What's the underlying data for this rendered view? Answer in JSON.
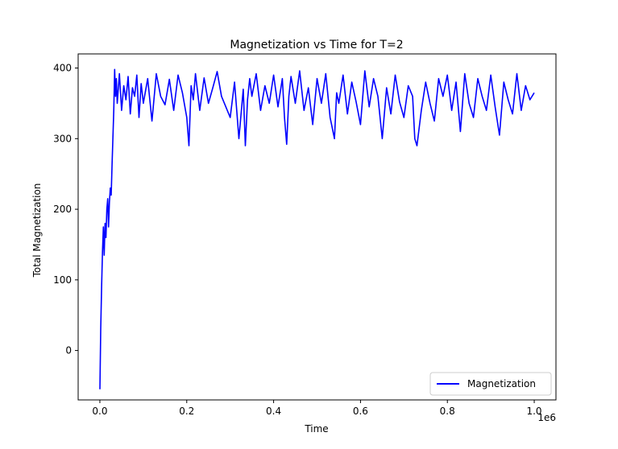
{
  "chart_data": {
    "type": "line",
    "title": "Magnetization vs Time for T=2",
    "xlabel": "Time",
    "ylabel": "Total Magnetization",
    "x_scale_label": "1e6",
    "xlim": [
      -50000,
      1050000
    ],
    "ylim": [
      -70,
      420
    ],
    "x_ticks": [
      0,
      200000,
      400000,
      600000,
      800000,
      1000000
    ],
    "x_tick_labels": [
      "0.0",
      "0.2",
      "0.4",
      "0.6",
      "0.8",
      "1.0"
    ],
    "y_ticks": [
      0,
      100,
      200,
      300,
      400
    ],
    "y_tick_labels": [
      "0",
      "100",
      "200",
      "300",
      "400"
    ],
    "grid": false,
    "legend": "lower-right",
    "series": [
      {
        "name": "Magnetization",
        "color": "#0000ff",
        "x": [
          0,
          2000,
          4000,
          6000,
          8000,
          10000,
          12000,
          14000,
          16000,
          18000,
          20000,
          22000,
          24000,
          26000,
          28000,
          30000,
          32000,
          34000,
          36000,
          38000,
          40000,
          45000,
          50000,
          55000,
          60000,
          65000,
          70000,
          75000,
          80000,
          85000,
          90000,
          95000,
          100000,
          110000,
          120000,
          130000,
          140000,
          150000,
          160000,
          170000,
          180000,
          190000,
          200000,
          205000,
          210000,
          215000,
          220000,
          230000,
          240000,
          250000,
          260000,
          270000,
          280000,
          290000,
          300000,
          310000,
          320000,
          330000,
          335000,
          340000,
          345000,
          350000,
          360000,
          370000,
          380000,
          390000,
          400000,
          410000,
          420000,
          425000,
          430000,
          435000,
          440000,
          450000,
          460000,
          470000,
          480000,
          490000,
          500000,
          510000,
          520000,
          530000,
          540000,
          545000,
          550000,
          560000,
          570000,
          580000,
          590000,
          600000,
          610000,
          620000,
          630000,
          640000,
          650000,
          660000,
          670000,
          680000,
          690000,
          700000,
          710000,
          720000,
          725000,
          730000,
          740000,
          750000,
          760000,
          770000,
          780000,
          790000,
          800000,
          810000,
          820000,
          830000,
          840000,
          850000,
          860000,
          870000,
          880000,
          890000,
          900000,
          910000,
          920000,
          930000,
          940000,
          950000,
          960000,
          970000,
          980000,
          990000,
          1000000
        ],
        "y": [
          -55,
          30,
          90,
          140,
          175,
          135,
          180,
          160,
          200,
          215,
          175,
          210,
          230,
          220,
          260,
          300,
          340,
          398,
          360,
          385,
          350,
          392,
          340,
          375,
          355,
          388,
          335,
          372,
          360,
          390,
          330,
          378,
          350,
          385,
          325,
          392,
          360,
          348,
          384,
          340,
          390,
          365,
          330,
          290,
          375,
          355,
          392,
          340,
          386,
          350,
          372,
          395,
          360,
          345,
          330,
          380,
          300,
          370,
          290,
          355,
          385,
          360,
          392,
          340,
          375,
          350,
          390,
          345,
          385,
          330,
          292,
          360,
          388,
          350,
          396,
          340,
          372,
          320,
          385,
          350,
          392,
          330,
          300,
          365,
          350,
          390,
          335,
          380,
          352,
          320,
          396,
          345,
          385,
          360,
          300,
          372,
          335,
          390,
          352,
          330,
          375,
          360,
          300,
          290,
          340,
          380,
          350,
          325,
          385,
          360,
          390,
          340,
          380,
          310,
          392,
          350,
          330,
          385,
          360,
          340,
          390,
          345,
          305,
          380,
          355,
          335,
          392,
          340,
          375,
          355,
          365
        ]
      }
    ]
  }
}
